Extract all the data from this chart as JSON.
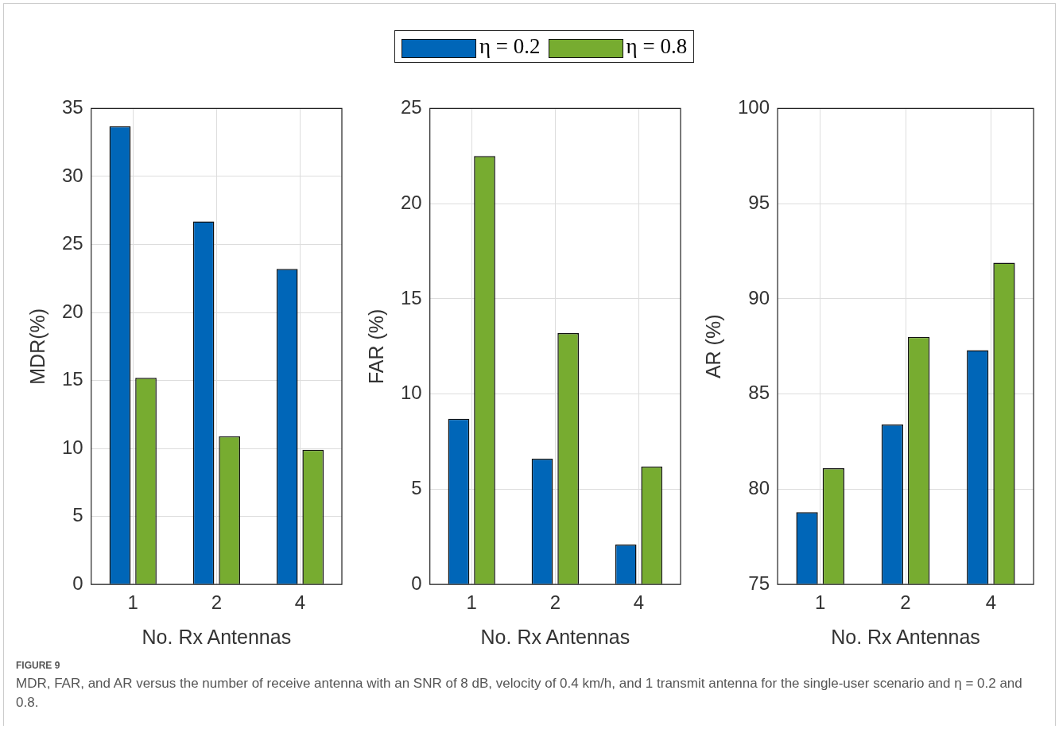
{
  "chart_data": [
    {
      "type": "bar",
      "xlabel": "No. Rx Antennas",
      "ylabel": "MDR(%)",
      "categories": [
        "1",
        "2",
        "4"
      ],
      "series": [
        {
          "name": "η = 0.2",
          "color": "#0066b8",
          "values": [
            33.7,
            26.7,
            23.2
          ]
        },
        {
          "name": "η = 0.8",
          "color": "#77ac30",
          "values": [
            15.2,
            10.9,
            9.9
          ]
        }
      ],
      "ylim": [
        0,
        35
      ],
      "yticks": [
        0,
        5,
        10,
        15,
        20,
        25,
        30,
        35
      ],
      "grid": true,
      "legend": "top",
      "annotations": [
        "FIGURE 9",
        "MDR, FAR, and AR versus the number of receive antenna with an SNR of 8 dB, velocity of 0.4 km/h, and 1 transmit antenna for the single-user scenario and η = 0.2 and 0.8."
      ]
    },
    {
      "type": "bar",
      "xlabel": "No. Rx Antennas",
      "ylabel": "FAR (%)",
      "categories": [
        "1",
        "2",
        "4"
      ],
      "series": [
        {
          "color": "#0066b8",
          "values": [
            8.7,
            6.6,
            2.1
          ]
        },
        {
          "color": "#77ac30",
          "values": [
            22.5,
            13.2,
            6.2
          ]
        }
      ],
      "ylim": [
        0,
        25
      ],
      "yticks": [
        0,
        5,
        10,
        15,
        20,
        25
      ],
      "grid": true
    },
    {
      "type": "bar",
      "xlabel": "No. Rx Antennas",
      "ylabel": "AR (%)",
      "categories": [
        "1",
        "2",
        "4"
      ],
      "series": [
        {
          "color": "#0066b8",
          "values": [
            78.8,
            83.4,
            87.3
          ]
        },
        {
          "color": "#77ac30",
          "values": [
            81.1,
            88.0,
            91.9
          ]
        }
      ],
      "ylim": [
        75,
        100
      ],
      "yticks": [
        75,
        80,
        85,
        90,
        95,
        100
      ],
      "grid": true
    }
  ]
}
